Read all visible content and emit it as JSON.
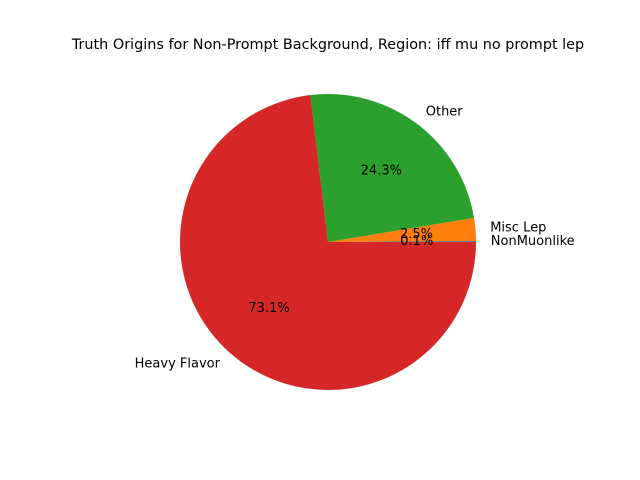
{
  "chart_data": {
    "type": "pie",
    "title": "Truth Origins for Non-Prompt Background, Region: iff mu no prompt lep",
    "start_angle_deg": 0,
    "direction": "counterclockwise",
    "slices": [
      {
        "label": "NonMuonlike",
        "value": 0.1,
        "pct_text": "0.1%",
        "color": "#1f77b4"
      },
      {
        "label": "Misc Lep",
        "value": 2.5,
        "pct_text": "2.5%",
        "color": "#ff7f0e"
      },
      {
        "label": "Other",
        "value": 24.3,
        "pct_text": "24.3%",
        "color": "#2ca02c"
      },
      {
        "label": "Heavy Flavor",
        "value": 73.1,
        "pct_text": "73.1%",
        "color": "#d62728"
      }
    ]
  }
}
